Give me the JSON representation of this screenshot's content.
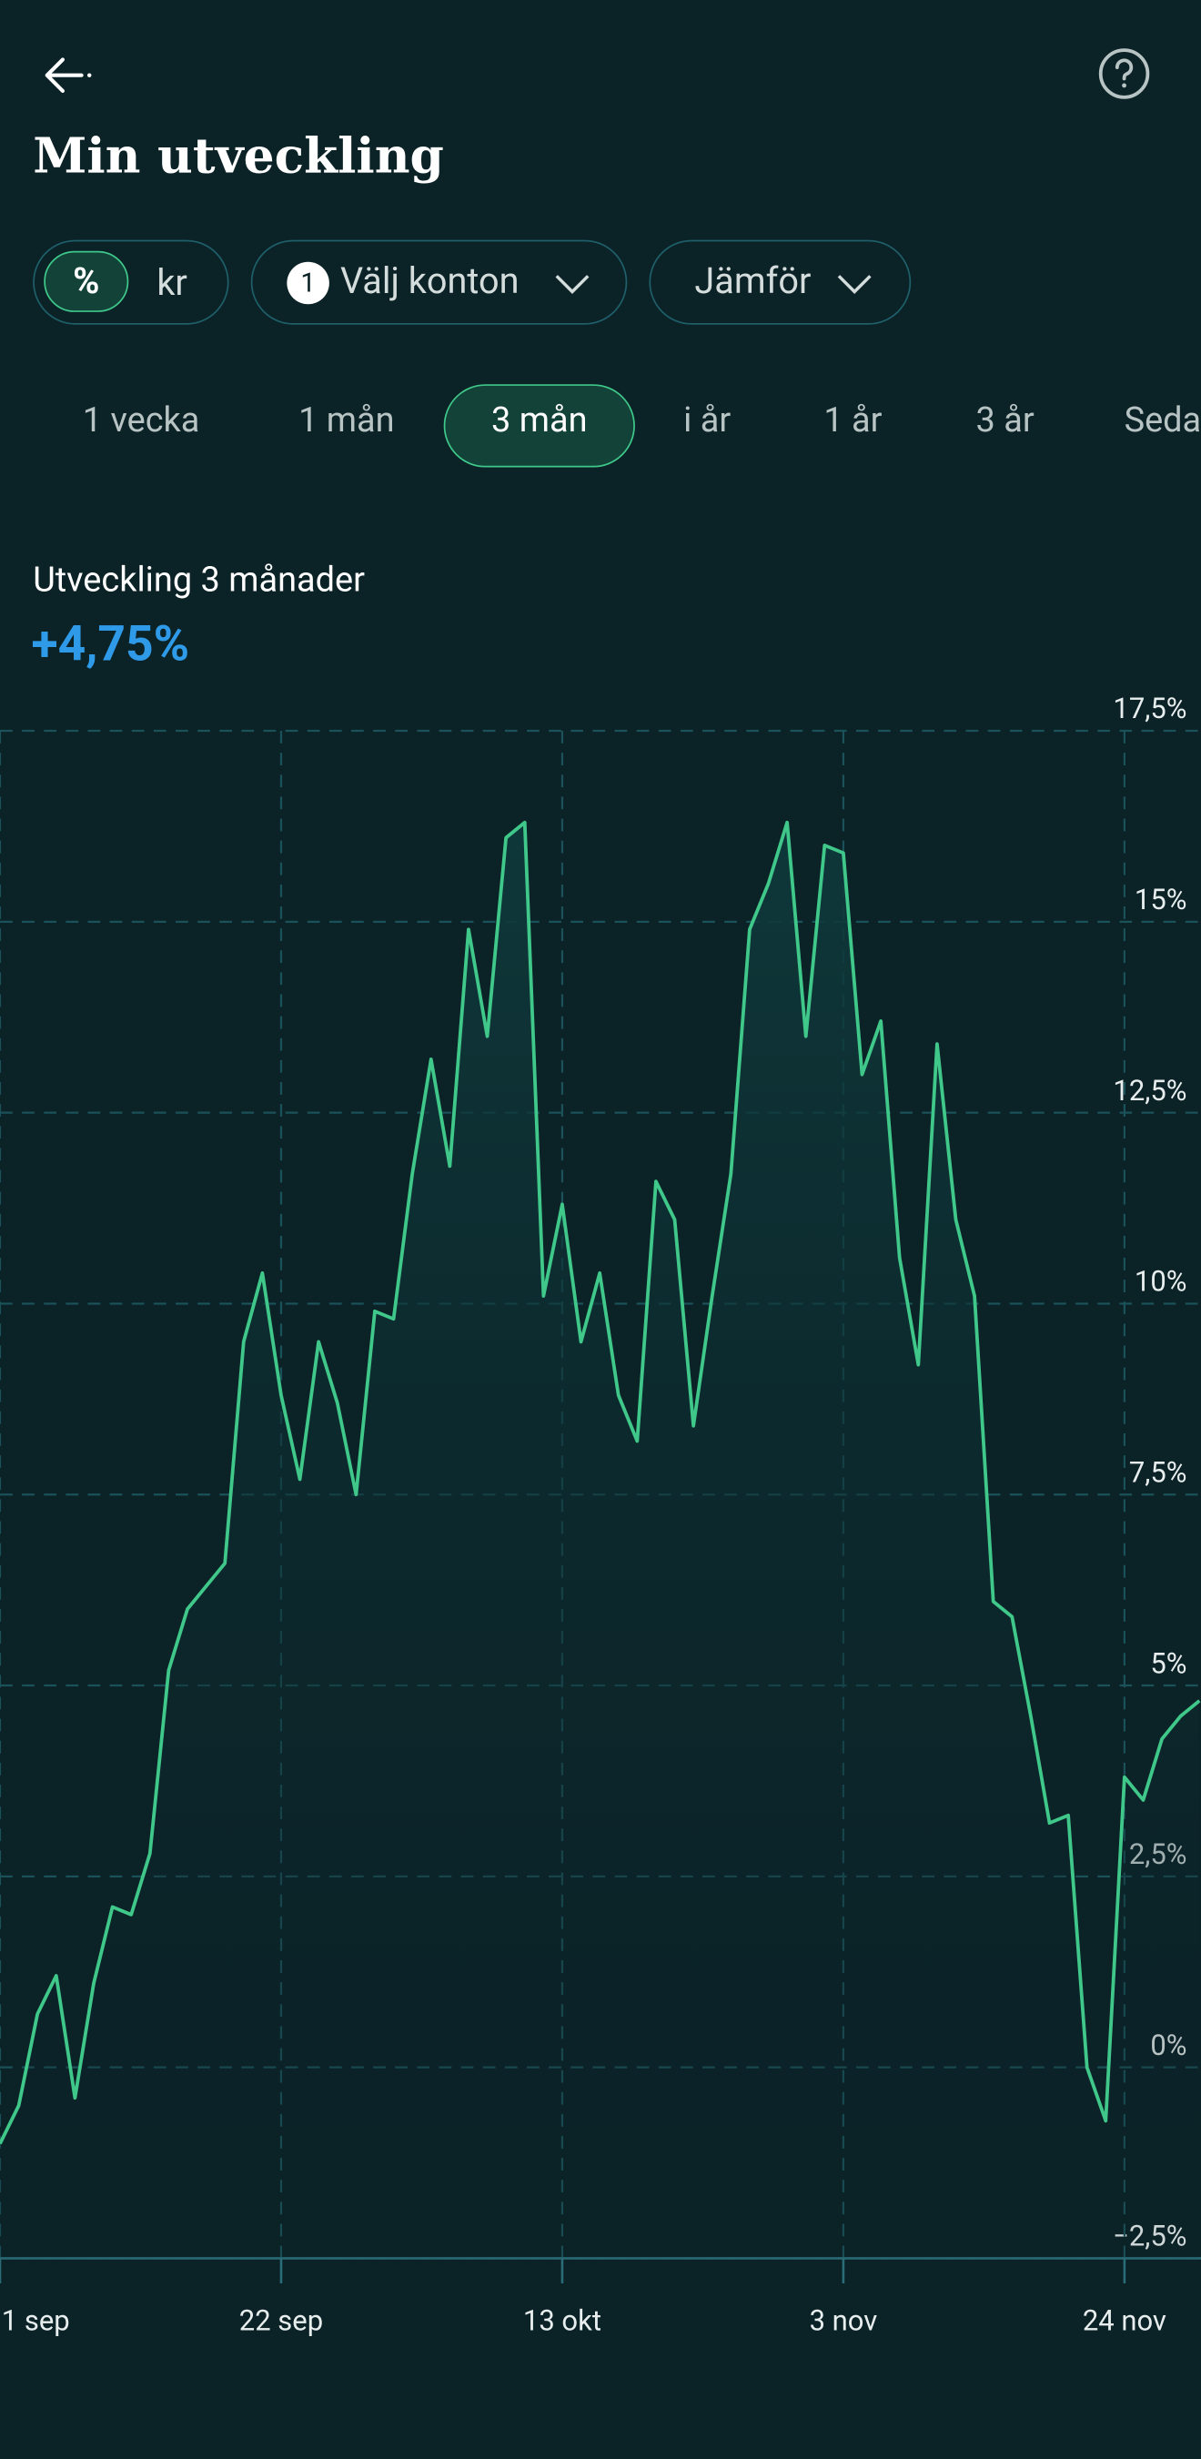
{
  "header": {
    "title": "Min utveckling"
  },
  "unit_toggle": [
    "%",
    "kr"
  ],
  "filters": {
    "accounts_badge": "1",
    "accounts": "Välj konton",
    "compare": "Jämför"
  },
  "periods": [
    "1 vecka",
    "1 mån",
    "3 mån",
    "i år",
    "1 år",
    "3 år",
    "Seda"
  ],
  "summary": {
    "label": "Utveckling 3 månader",
    "value": "+4,75%"
  },
  "chart_data": {
    "type": "line",
    "color": "#3fc88a",
    "categories": [
      "1 sep",
      null,
      null,
      null,
      null,
      null,
      null,
      null,
      null,
      null,
      null,
      null,
      null,
      null,
      null,
      "22 sep",
      null,
      null,
      null,
      null,
      null,
      null,
      null,
      null,
      null,
      null,
      null,
      null,
      null,
      null,
      "13 okt",
      null,
      null,
      null,
      null,
      null,
      null,
      null,
      null,
      null,
      null,
      null,
      null,
      null,
      null,
      "3 nov",
      null,
      null,
      null,
      null,
      null,
      null,
      null,
      null,
      null,
      null,
      null,
      null,
      null,
      null,
      "24 nov",
      null,
      null,
      null,
      null
    ],
    "values": [
      -1.0,
      -0.5,
      0.7,
      1.2,
      -0.4,
      1.1,
      2.1,
      2.0,
      2.8,
      5.2,
      6.0,
      6.3,
      6.6,
      9.5,
      10.4,
      8.8,
      7.7,
      9.5,
      8.7,
      7.5,
      9.9,
      9.8,
      11.7,
      13.2,
      11.8,
      14.9,
      13.5,
      16.1,
      16.3,
      10.1,
      11.3,
      9.5,
      10.4,
      8.8,
      8.2,
      11.6,
      11.1,
      8.4,
      10.1,
      11.7,
      14.9,
      15.5,
      16.3,
      13.5,
      16.0,
      15.9,
      13.0,
      13.7,
      10.6,
      9.2,
      13.4,
      11.1,
      10.1,
      6.1,
      5.9,
      4.6,
      3.2,
      3.3,
      0.0,
      -0.7,
      3.8,
      3.5,
      4.3,
      4.6,
      4.8
    ],
    "ylim": [
      -2.5,
      17.5
    ],
    "yticks": [
      {
        "value": -2.5,
        "label": "−2,5%"
      },
      {
        "value": 0,
        "label": "0%"
      },
      {
        "value": 2.5,
        "label": "2,5%"
      },
      {
        "value": 5,
        "label": "5%"
      },
      {
        "value": 7.5,
        "label": "7,5%"
      },
      {
        "value": 10,
        "label": "10%"
      },
      {
        "value": 12.5,
        "label": "12,5%"
      },
      {
        "value": 15,
        "label": "15%"
      },
      {
        "value": 17.5,
        "label": "17,5%"
      }
    ],
    "grid": true
  }
}
